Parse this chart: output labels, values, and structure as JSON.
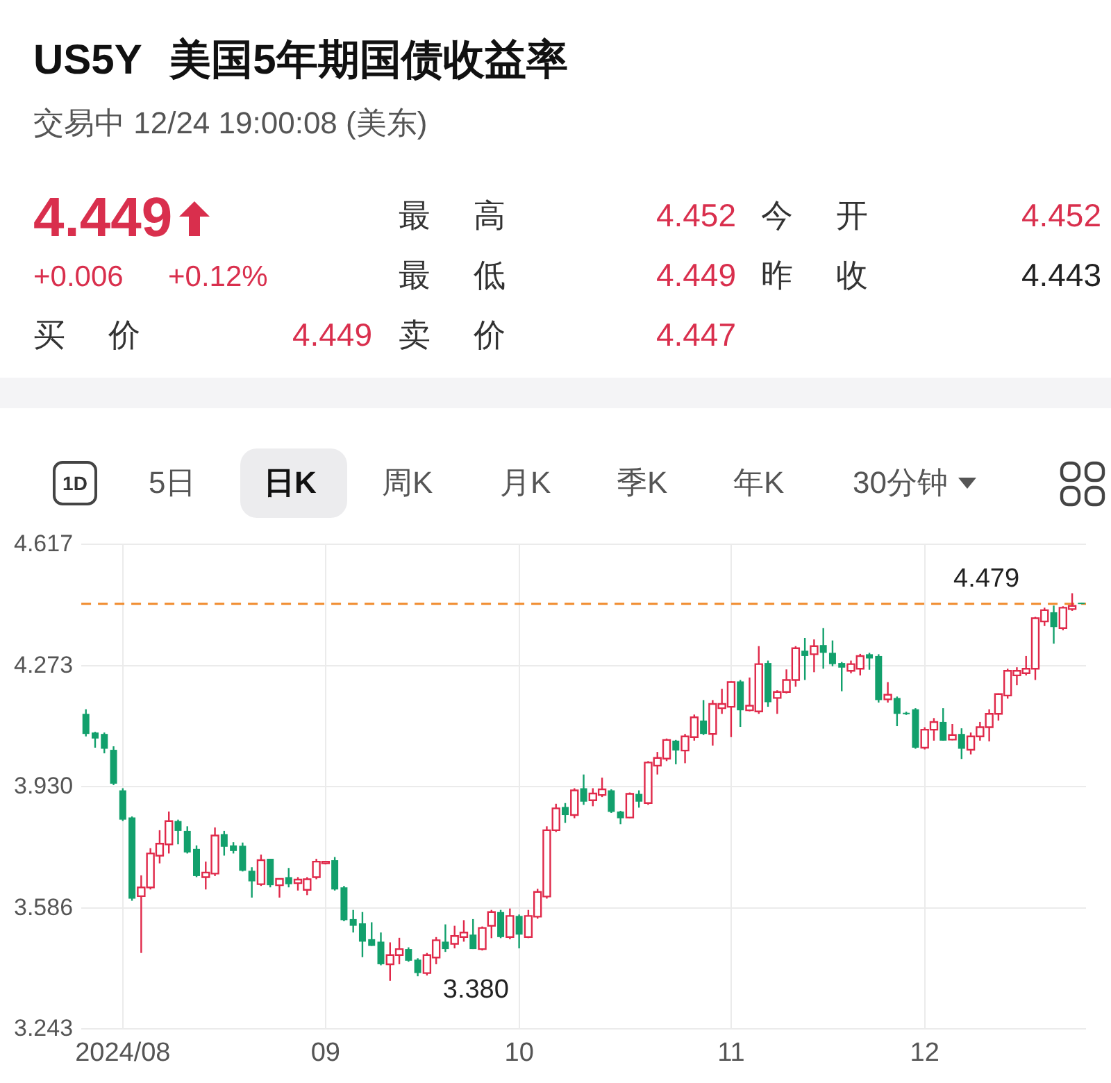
{
  "chart_data": {
    "type": "candlestick",
    "title": "US5Y 美国5年期国债收益率",
    "subtitle": "交易中 12/24 19:00:08 (美东)",
    "annotations": [
      "4.449",
      "+0.006",
      "+0.12%",
      "最高",
      "4.452",
      "今开",
      "4.452",
      "最低",
      "4.449",
      "昨收",
      "4.443",
      "买价",
      "4.449",
      "卖价",
      "4.447",
      "1D",
      "5日",
      "日K",
      "周K",
      "月K",
      "季K",
      "年K",
      "30分钟",
      "4.479",
      "3.380"
    ],
    "categories": [
      null,
      null,
      null,
      null,
      "2024/08",
      null,
      null,
      null,
      null,
      null,
      null,
      null,
      null,
      null,
      null,
      null,
      null,
      null,
      null,
      null,
      null,
      null,
      null,
      null,
      null,
      null,
      "09",
      null,
      null,
      null,
      null,
      null,
      null,
      null,
      null,
      null,
      null,
      null,
      null,
      null,
      null,
      null,
      null,
      null,
      null,
      null,
      null,
      "10",
      null,
      null,
      null,
      null,
      null,
      null,
      null,
      null,
      null,
      null,
      null,
      null,
      null,
      null,
      null,
      null,
      null,
      null,
      null,
      null,
      null,
      null,
      "11",
      null,
      null,
      null,
      null,
      null,
      null,
      null,
      null,
      null,
      null,
      null,
      null,
      null,
      null,
      null,
      null,
      null,
      null,
      null,
      null,
      "12",
      null,
      null,
      null,
      null,
      null,
      null,
      null,
      null,
      null,
      null,
      null,
      null,
      null,
      null,
      null,
      null,
      null
    ],
    "ohlc": [
      [
        4.137,
        4.15,
        4.073,
        4.08
      ],
      [
        4.084,
        4.086,
        4.041,
        4.067
      ],
      [
        4.08,
        4.084,
        4.025,
        4.038
      ],
      [
        4.035,
        4.045,
        3.935,
        3.939
      ],
      [
        3.92,
        3.926,
        3.833,
        3.837
      ],
      [
        3.843,
        3.846,
        3.607,
        3.613
      ],
      [
        3.62,
        3.679,
        3.459,
        3.645
      ],
      [
        3.645,
        3.756,
        3.639,
        3.741
      ],
      [
        3.735,
        3.807,
        3.713,
        3.769
      ],
      [
        3.767,
        3.86,
        3.741,
        3.833
      ],
      [
        3.833,
        3.837,
        3.767,
        3.805
      ],
      [
        3.805,
        3.818,
        3.741,
        3.744
      ],
      [
        3.754,
        3.764,
        3.674,
        3.677
      ],
      [
        3.674,
        3.718,
        3.639,
        3.687
      ],
      [
        3.684,
        3.815,
        3.677,
        3.792
      ],
      [
        3.796,
        3.805,
        3.735,
        3.76
      ],
      [
        3.764,
        3.773,
        3.741,
        3.748
      ],
      [
        3.763,
        3.772,
        3.69,
        3.692
      ],
      [
        3.692,
        3.702,
        3.616,
        3.662
      ],
      [
        3.654,
        3.738,
        3.649,
        3.722
      ],
      [
        3.726,
        3.726,
        3.645,
        3.651
      ],
      [
        3.651,
        3.67,
        3.616,
        3.669
      ],
      [
        3.674,
        3.7,
        3.645,
        3.654
      ],
      [
        3.657,
        3.674,
        3.636,
        3.667
      ],
      [
        3.638,
        3.674,
        3.623,
        3.668
      ],
      [
        3.674,
        3.726,
        3.668,
        3.718
      ],
      [
        3.713,
        3.72,
        3.71,
        3.718
      ],
      [
        3.722,
        3.731,
        3.636,
        3.639
      ],
      [
        3.645,
        3.649,
        3.549,
        3.552
      ],
      [
        3.555,
        3.581,
        3.517,
        3.536
      ],
      [
        3.543,
        3.575,
        3.447,
        3.491
      ],
      [
        3.498,
        3.546,
        3.479,
        3.479
      ],
      [
        3.491,
        3.517,
        3.424,
        3.427
      ],
      [
        3.427,
        3.489,
        3.38,
        3.453
      ],
      [
        3.453,
        3.502,
        3.427,
        3.47
      ],
      [
        3.47,
        3.475,
        3.434,
        3.437
      ],
      [
        3.44,
        3.444,
        3.393,
        3.402
      ],
      [
        3.402,
        3.459,
        3.395,
        3.453
      ],
      [
        3.446,
        3.504,
        3.427,
        3.495
      ],
      [
        3.491,
        3.54,
        3.462,
        3.47
      ],
      [
        3.485,
        3.536,
        3.472,
        3.507
      ],
      [
        3.504,
        3.552,
        3.491,
        3.517
      ],
      [
        3.511,
        3.555,
        3.47,
        3.47
      ],
      [
        3.47,
        3.534,
        3.466,
        3.53
      ],
      [
        3.536,
        3.581,
        3.501,
        3.575
      ],
      [
        3.575,
        3.581,
        3.501,
        3.504
      ],
      [
        3.504,
        3.585,
        3.498,
        3.564
      ],
      [
        3.564,
        3.568,
        3.472,
        3.511
      ],
      [
        3.504,
        3.581,
        3.501,
        3.564
      ],
      [
        3.562,
        3.641,
        3.556,
        3.632
      ],
      [
        3.619,
        3.818,
        3.613,
        3.807
      ],
      [
        3.807,
        3.882,
        3.802,
        3.869
      ],
      [
        3.873,
        3.884,
        3.828,
        3.85
      ],
      [
        3.85,
        3.926,
        3.841,
        3.92
      ],
      [
        3.926,
        3.965,
        3.879,
        3.888
      ],
      [
        3.892,
        3.926,
        3.875,
        3.911
      ],
      [
        3.907,
        3.956,
        3.901,
        3.923
      ],
      [
        3.92,
        3.923,
        3.856,
        3.859
      ],
      [
        3.86,
        3.862,
        3.824,
        3.841
      ],
      [
        3.843,
        3.914,
        3.841,
        3.91
      ],
      [
        3.91,
        3.92,
        3.871,
        3.888
      ],
      [
        3.884,
        4.003,
        3.879,
        3.999
      ],
      [
        3.99,
        4.029,
        3.965,
        4.012
      ],
      [
        4.01,
        4.067,
        4.003,
        4.063
      ],
      [
        4.061,
        4.063,
        3.994,
        4.033
      ],
      [
        4.033,
        4.08,
        3.997,
        4.073
      ],
      [
        4.071,
        4.135,
        4.061,
        4.127
      ],
      [
        4.118,
        4.176,
        4.077,
        4.08
      ],
      [
        4.08,
        4.176,
        4.047,
        4.165
      ],
      [
        4.153,
        4.208,
        4.137,
        4.165
      ],
      [
        4.157,
        4.229,
        4.071,
        4.227
      ],
      [
        4.229,
        4.233,
        4.1,
        4.147
      ],
      [
        4.147,
        4.24,
        4.144,
        4.16
      ],
      [
        4.144,
        4.329,
        4.137,
        4.278
      ],
      [
        4.281,
        4.288,
        4.157,
        4.17
      ],
      [
        4.182,
        4.204,
        4.137,
        4.199
      ],
      [
        4.199,
        4.263,
        4.195,
        4.233
      ],
      [
        4.233,
        4.329,
        4.214,
        4.323
      ],
      [
        4.316,
        4.352,
        4.233,
        4.301
      ],
      [
        4.306,
        4.348,
        4.255,
        4.329
      ],
      [
        4.332,
        4.38,
        4.265,
        4.31
      ],
      [
        4.31,
        4.345,
        4.272,
        4.278
      ],
      [
        4.281,
        4.284,
        4.201,
        4.268
      ],
      [
        4.259,
        4.288,
        4.252,
        4.278
      ],
      [
        4.265,
        4.307,
        4.246,
        4.301
      ],
      [
        4.306,
        4.31,
        4.262,
        4.294
      ],
      [
        4.301,
        4.306,
        4.169,
        4.176
      ],
      [
        4.178,
        4.227,
        4.169,
        4.191
      ],
      [
        4.182,
        4.186,
        4.102,
        4.137
      ],
      [
        4.14,
        4.143,
        4.134,
        4.137
      ],
      [
        4.15,
        4.153,
        4.038,
        4.041
      ],
      [
        4.041,
        4.099,
        4.036,
        4.092
      ],
      [
        4.092,
        4.125,
        4.061,
        4.114
      ],
      [
        4.114,
        4.153,
        4.061,
        4.061
      ],
      [
        4.064,
        4.108,
        4.062,
        4.077
      ],
      [
        4.08,
        4.096,
        4.009,
        4.038
      ],
      [
        4.035,
        4.084,
        4.022,
        4.073
      ],
      [
        4.073,
        4.114,
        4.061,
        4.099
      ],
      [
        4.099,
        4.15,
        4.059,
        4.137
      ],
      [
        4.137,
        4.195,
        4.118,
        4.193
      ],
      [
        4.189,
        4.265,
        4.18,
        4.259
      ],
      [
        4.246,
        4.269,
        4.218,
        4.259
      ],
      [
        4.252,
        4.301,
        4.246,
        4.265
      ],
      [
        4.265,
        4.412,
        4.233,
        4.408
      ],
      [
        4.399,
        4.438,
        4.386,
        4.431
      ],
      [
        4.425,
        4.444,
        4.336,
        4.383
      ],
      [
        4.38,
        4.442,
        4.374,
        4.438
      ],
      [
        4.434,
        4.479,
        4.429,
        4.443
      ],
      [
        4.452,
        4.452,
        4.449,
        4.449
      ]
    ],
    "colors": [
      "#12a06c",
      "#12a06c",
      "#12a06c",
      "#12a06c",
      "#12a06c",
      "#12a06c",
      "#e0294a",
      "#e0294a",
      "#e0294a",
      "#e0294a",
      "#12a06c",
      "#12a06c",
      "#12a06c",
      "#e0294a",
      "#e0294a",
      "#12a06c",
      "#12a06c",
      "#12a06c",
      "#12a06c",
      "#e0294a",
      "#12a06c",
      "#e0294a",
      "#12a06c",
      "#e0294a",
      "#e0294a",
      "#e0294a",
      "#e0294a",
      "#12a06c",
      "#12a06c",
      "#12a06c",
      "#12a06c",
      "#12a06c",
      "#12a06c",
      "#e0294a",
      "#e0294a",
      "#12a06c",
      "#12a06c",
      "#e0294a",
      "#e0294a",
      "#12a06c",
      "#e0294a",
      "#e0294a",
      "#12a06c",
      "#e0294a",
      "#e0294a",
      "#12a06c",
      "#e0294a",
      "#12a06c",
      "#e0294a",
      "#e0294a",
      "#e0294a",
      "#e0294a",
      "#12a06c",
      "#e0294a",
      "#12a06c",
      "#e0294a",
      "#e0294a",
      "#12a06c",
      "#12a06c",
      "#e0294a",
      "#12a06c",
      "#e0294a",
      "#e0294a",
      "#e0294a",
      "#12a06c",
      "#e0294a",
      "#e0294a",
      "#12a06c",
      "#e0294a",
      "#e0294a",
      "#e0294a",
      "#12a06c",
      "#e0294a",
      "#e0294a",
      "#12a06c",
      "#e0294a",
      "#e0294a",
      "#e0294a",
      "#12a06c",
      "#e0294a",
      "#12a06c",
      "#12a06c",
      "#12a06c",
      "#e0294a",
      "#e0294a",
      "#12a06c",
      "#12a06c",
      "#e0294a",
      "#12a06c",
      "#12a06c",
      "#12a06c",
      "#e0294a",
      "#e0294a",
      "#12a06c",
      "#e0294a",
      "#12a06c",
      "#e0294a",
      "#e0294a",
      "#e0294a",
      "#e0294a",
      "#e0294a",
      "#e0294a",
      "#e0294a",
      "#e0294a",
      "#e0294a",
      "#12a06c",
      "#e0294a",
      "#e0294a",
      "#12a06c"
    ],
    "ylim": [
      3.243,
      4.617
    ],
    "yticks": [
      3.243,
      3.586,
      {
        "value": 3.93,
        "label": "3.930"
      },
      4.273,
      4.617
    ],
    "grid": true,
    "ref_lines": [
      {
        "axis": "y",
        "value": 4.449,
        "color": "#f08a2c",
        "line_style": "dashed"
      }
    ]
  }
}
